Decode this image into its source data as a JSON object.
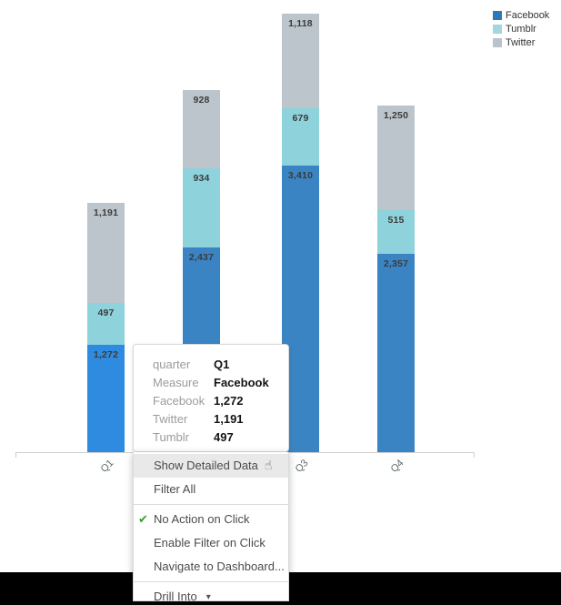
{
  "chart_data": {
    "type": "bar",
    "variant": "stacked",
    "categories": [
      "Q1",
      "Q2",
      "Q3",
      "Q4"
    ],
    "stack_order_bottom_to_top": [
      "Facebook",
      "Tumblr",
      "Twitter"
    ],
    "series": [
      {
        "name": "Facebook",
        "values": [
          1272,
          2437,
          3410,
          2357
        ],
        "labels": [
          "1,272",
          "2,437",
          "3,410",
          "2,357"
        ],
        "color": "#3b84c3",
        "selected_color": "#2e8bdf"
      },
      {
        "name": "Tumblr",
        "values": [
          497,
          934,
          679,
          515
        ],
        "labels": [
          "497",
          "934",
          "679",
          "515"
        ],
        "color": "#8ed2db"
      },
      {
        "name": "Twitter",
        "values": [
          1191,
          928,
          1118,
          1250
        ],
        "labels": [
          "1,191",
          "928",
          "1,118",
          "1,250"
        ],
        "color": "#bbc5cb"
      }
    ],
    "selected_mark": {
      "category": "Q1",
      "series": "Facebook"
    },
    "legend": {
      "position": "top-right",
      "entries": [
        {
          "label": "Facebook",
          "color": "#2d78b7"
        },
        {
          "label": "Tumblr",
          "color": "#a2d7de"
        },
        {
          "label": "Twitter",
          "color": "#b9c3c9"
        }
      ]
    },
    "xlabel": "",
    "ylabel": "",
    "grid": false,
    "y_axis_shown": false
  },
  "tooltip": {
    "rows": [
      {
        "label": "quarter",
        "value": "Q1"
      },
      {
        "label": "Measure",
        "value": "Facebook"
      },
      {
        "label": "Facebook",
        "value": "1,272"
      },
      {
        "label": "Twitter",
        "value": "1,191"
      },
      {
        "label": "Tumblr",
        "value": "497"
      }
    ]
  },
  "menu": {
    "items": [
      {
        "id": "show-detailed-data",
        "label": "Show Detailed Data",
        "highlighted": true,
        "trailing_icon": "hand-cursor"
      },
      {
        "id": "filter-all",
        "label": "Filter All"
      },
      {
        "separator": true
      },
      {
        "id": "no-action-on-click",
        "label": "No Action on Click",
        "leading_icon": "checkmark",
        "checked": true
      },
      {
        "id": "enable-filter-on-click",
        "label": "Enable Filter on Click"
      },
      {
        "id": "navigate-to-dashboard",
        "label": "Navigate to Dashboard..."
      },
      {
        "separator": true
      },
      {
        "id": "drill-into",
        "label": "Drill Into",
        "trailing_icon": "caret-down"
      }
    ]
  },
  "colors": {
    "axis": "#cfcfcf",
    "bar_value_label": "#3b3b3b",
    "x_tick_label": "#5f6a6e",
    "menu_text": "#4b4b4b",
    "menu_highlight_bg": "#e9e9e9",
    "checkmark_green": "#2f9e2f",
    "tooltip_label": "#9b9b9b",
    "tooltip_value": "#141414",
    "letterbox": "#000000"
  },
  "icons": {
    "hand_cursor": "☝",
    "checkmark": "✔",
    "caret_down": "▾"
  }
}
